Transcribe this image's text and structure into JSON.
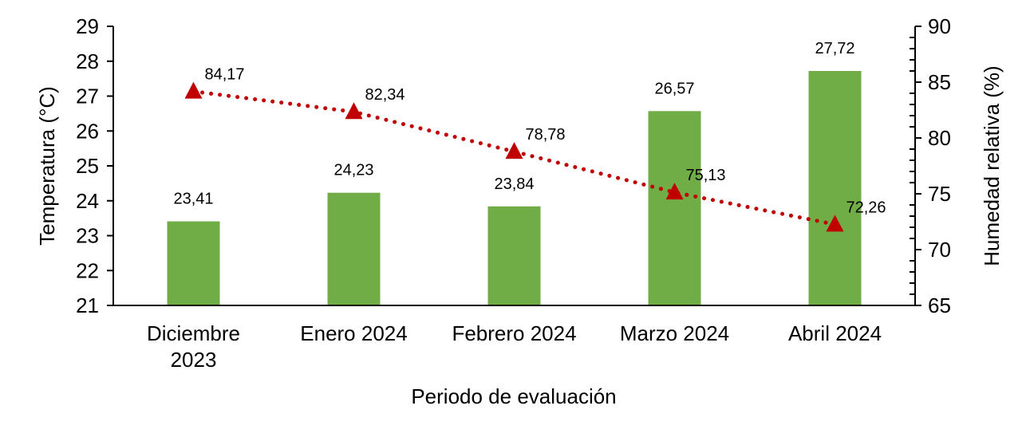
{
  "chart_data": {
    "type": "bar+line",
    "categories": [
      "Diciembre 2023",
      "Enero 2024",
      "Febrero 2024",
      "Marzo 2024",
      "Abril 2024"
    ],
    "category_lines": [
      [
        "Diciembre",
        "2023"
      ],
      [
        "Enero 2024"
      ],
      [
        "Febrero 2024"
      ],
      [
        "Marzo 2024"
      ],
      [
        "Abril 2024"
      ]
    ],
    "series": [
      {
        "type": "bar",
        "axis": "left",
        "values": [
          23.41,
          24.23,
          23.84,
          26.57,
          27.72
        ],
        "labels": [
          "23,41",
          "24,23",
          "23,84",
          "26,57",
          "27,72"
        ],
        "color": "#70AD47"
      },
      {
        "type": "line",
        "axis": "right",
        "style": "dotted",
        "marker": "triangle",
        "values": [
          84.17,
          82.34,
          78.78,
          75.13,
          72.26
        ],
        "labels": [
          "84,17",
          "82,34",
          "78,78",
          "75,13",
          "72,26"
        ],
        "color": "#C00000"
      }
    ],
    "xlabel": "Periodo de evaluación",
    "ylabel": "Temperatura (°C)",
    "y2label": "Humedad relativa (%)",
    "ylim": [
      21,
      29
    ],
    "y2lim": [
      65,
      90
    ],
    "yticks": [
      "21",
      "22",
      "23",
      "24",
      "25",
      "26",
      "27",
      "28",
      "29"
    ],
    "y2ticks": [
      "65",
      "70",
      "75",
      "80",
      "85",
      "90"
    ],
    "grid": false,
    "legend": "none"
  }
}
